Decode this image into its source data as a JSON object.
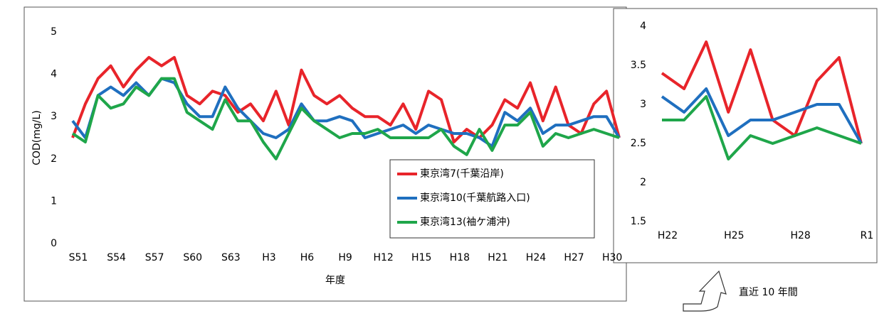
{
  "chart_data": [
    {
      "type": "line",
      "x_label": "年度",
      "y_label": "COD(mg/L)",
      "categories": [
        "S51",
        null,
        null,
        "S54",
        null,
        null,
        "S57",
        null,
        null,
        "S60",
        null,
        null,
        "S63",
        null,
        null,
        "H3",
        null,
        null,
        "H6",
        null,
        null,
        "H9",
        null,
        null,
        "H12",
        null,
        null,
        "H15",
        null,
        null,
        "H18",
        null,
        null,
        "H21",
        null,
        null,
        "H24",
        null,
        null,
        "H27",
        null,
        null,
        "H30",
        null
      ],
      "series": [
        {
          "name": "東京湾7(千葉沿岸)",
          "color": "#e8242a",
          "values": [
            2.5,
            3.3,
            3.9,
            4.2,
            3.7,
            4.1,
            4.4,
            4.2,
            4.4,
            3.5,
            3.3,
            3.6,
            3.5,
            3.1,
            3.3,
            2.9,
            3.6,
            2.8,
            4.1,
            3.5,
            3.3,
            3.5,
            3.2,
            3.0,
            3.0,
            2.8,
            3.3,
            2.7,
            3.6,
            3.4,
            2.4,
            2.7,
            2.5,
            2.8,
            3.4,
            3.2,
            3.8,
            2.9,
            3.7,
            2.8,
            2.6,
            3.3,
            3.6,
            2.5
          ]
        },
        {
          "name": "東京湾10(千葉航路入口)",
          "color": "#1f6fbf",
          "values": [
            2.9,
            2.5,
            3.5,
            3.7,
            3.5,
            3.8,
            3.5,
            3.9,
            3.8,
            3.3,
            3.0,
            3.0,
            3.7,
            3.2,
            2.9,
            2.6,
            2.5,
            2.7,
            3.3,
            2.9,
            2.9,
            3.0,
            2.9,
            2.5,
            2.6,
            2.7,
            2.8,
            2.6,
            2.8,
            2.7,
            2.6,
            2.6,
            2.5,
            2.3,
            3.1,
            2.9,
            3.2,
            2.6,
            2.8,
            2.8,
            2.9,
            3.0,
            3.0,
            2.5
          ]
        },
        {
          "name": "東京湾13(袖ケ浦沖)",
          "color": "#1fa64a",
          "values": [
            2.6,
            2.4,
            3.5,
            3.2,
            3.3,
            3.7,
            3.5,
            3.9,
            3.9,
            3.1,
            2.9,
            2.7,
            3.4,
            2.9,
            2.9,
            2.4,
            2.0,
            2.6,
            3.2,
            2.9,
            2.7,
            2.5,
            2.6,
            2.6,
            2.7,
            2.5,
            2.5,
            2.5,
            2.5,
            2.7,
            2.3,
            2.1,
            2.7,
            2.2,
            2.8,
            2.8,
            3.1,
            2.3,
            2.6,
            2.5,
            2.6,
            2.7,
            2.6,
            2.5
          ]
        }
      ],
      "ylim": [
        0,
        5
      ],
      "yticks": [
        0,
        1,
        2,
        3,
        4,
        5
      ],
      "grid": false,
      "legend": "lower right"
    },
    {
      "type": "line",
      "annotation": "直近 10 年間",
      "categories": [
        "H22",
        null,
        null,
        "H25",
        null,
        null,
        "H28",
        null,
        null,
        "R1"
      ],
      "series": [
        {
          "name": "東京湾7(千葉沿岸)",
          "color": "#e8242a",
          "values": [
            3.4,
            3.2,
            3.8,
            2.9,
            3.7,
            2.8,
            2.6,
            3.3,
            3.6,
            2.5
          ]
        },
        {
          "name": "東京湾10(千葉航路入口)",
          "color": "#1f6fbf",
          "values": [
            3.1,
            2.9,
            3.2,
            2.6,
            2.8,
            2.8,
            2.9,
            3.0,
            3.0,
            2.5
          ]
        },
        {
          "name": "東京湾13(袖ケ浦沖)",
          "color": "#1fa64a",
          "values": [
            2.8,
            2.8,
            3.1,
            2.3,
            2.6,
            2.5,
            2.6,
            2.7,
            2.6,
            2.5
          ]
        }
      ],
      "ylim": [
        1.5,
        4
      ],
      "yticks": [
        1.5,
        2,
        2.5,
        3,
        3.5,
        4
      ],
      "grid": false
    }
  ]
}
